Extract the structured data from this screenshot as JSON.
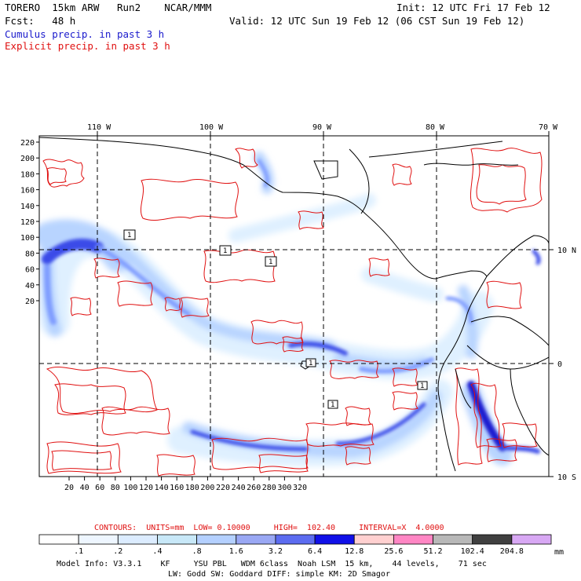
{
  "header": {
    "line1_left": "TORERO  15km ARW   Run2    NCAR/MMM",
    "line1_right": "Init: 12 UTC Fri 17 Feb 12",
    "line2_left": "Fcst:   48 h",
    "line2_right": "Valid: 12 UTC Sun 19 Feb 12 (06 CST Sun 19 Feb 12)",
    "field1": "Cumulus precip. in past 3 h",
    "field2": "Explicit precip. in past 3 h",
    "colors": {
      "field1": "#1a1acc",
      "field2": "#e01010"
    }
  },
  "map": {
    "top_lon_labels": [
      "110 W",
      "100 W",
      "90 W",
      "80 W",
      "70 W"
    ],
    "right_lat_labels": [
      "10 N",
      "0",
      "10 S"
    ],
    "y_ticks": [
      "220",
      "200",
      "180",
      "160",
      "140",
      "120",
      "100",
      "80",
      "60",
      "40",
      "20"
    ],
    "x_ticks": [
      "20",
      "40",
      "60",
      "80",
      "100",
      "120",
      "140",
      "160",
      "180",
      "200",
      "220",
      "240",
      "260",
      "280",
      "300",
      "320"
    ],
    "box_labels": [
      "1",
      "1",
      "1",
      "1",
      "1",
      "1"
    ],
    "gridline_style": "dashed",
    "land_fill": "none",
    "contour_color": "#e01010",
    "cumulus_shades": [
      "#dff0ff",
      "#b8d4ff",
      "#7f9cff",
      "#3a4ce8",
      "#1c1cd0"
    ]
  },
  "contours_line": {
    "label": "CONTOURS:  UNITS=mm  LOW= 0.10000     HIGH=  102.40     INTERVAL=X  4.0000"
  },
  "colorbar": {
    "labels": [
      ".1",
      ".2",
      ".4",
      ".8",
      "1.6",
      "3.2",
      "6.4",
      "12.8",
      "25.6",
      "51.2",
      "102.4",
      "204.8"
    ],
    "colors": [
      "#ffffff",
      "#eef6ff",
      "#dcecff",
      "#c8e8f8",
      "#b4d0ff",
      "#9aa8f4",
      "#5c6cf0",
      "#1010e8",
      "#ffd0d0",
      "#ff86c4",
      "#b8b8b8",
      "#404040",
      "#d8a8f4"
    ],
    "unit": "mm"
  },
  "footer": {
    "line1": "Model Info: V3.3.1    KF     YSU PBL   WDM 6class  Noah LSM  15 km,    44 levels,    71 sec",
    "line2": "LW: Godd SW: Goddard DIFF: simple KM: 2D Smagor"
  }
}
